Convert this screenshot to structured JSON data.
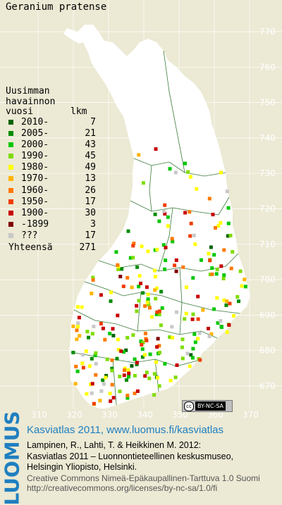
{
  "species": "Geranium pratense",
  "legend": {
    "heading": [
      "Uusimman",
      "havainnon",
      "vuosi"
    ],
    "count_heading": "lkm",
    "items": [
      {
        "label": "2010-",
        "count": "7",
        "color": "#006400"
      },
      {
        "label": "2005-",
        "count": "21",
        "color": "#008c00"
      },
      {
        "label": "2000-",
        "count": "43",
        "color": "#00c800"
      },
      {
        "label": "1990-",
        "count": "45",
        "color": "#7fdc00"
      },
      {
        "label": "1980-",
        "count": "49",
        "color": "#ffff00"
      },
      {
        "label": "1970-",
        "count": "13",
        "color": "#ffb400"
      },
      {
        "label": "1960-",
        "count": "26",
        "color": "#ff7800"
      },
      {
        "label": "1950-",
        "count": "17",
        "color": "#f03c00"
      },
      {
        "label": "1900-",
        "count": "30",
        "color": "#c80000"
      },
      {
        "label": "-1899",
        "count": "3",
        "color": "#800000"
      },
      {
        "label": "???",
        "count": "17",
        "color": "#c8c8c8"
      }
    ],
    "total_label": "Yhteensä",
    "total_count": "271"
  },
  "axis": {
    "north_labels": [
      "770",
      "760",
      "750",
      "740",
      "730",
      "720",
      "710",
      "700",
      "690",
      "680",
      "670"
    ],
    "east_labels": [
      "310",
      "320",
      "330",
      "340",
      "350",
      "360",
      "370"
    ]
  },
  "colors": {
    "background": "#ece9d4",
    "land": "#ffffff",
    "sea": "#ece9d4",
    "grid": "#ffffff",
    "border": "#3a7a3a",
    "brand": "#1f7fc0"
  },
  "cc_badge": {
    "text": "BY-NC-SA",
    "icon": "cc-icon"
  },
  "footer": {
    "logo": "LUOMUS",
    "atlas_line": "Kasviatlas 2011, www.luomus.fi/kasviatlas",
    "citation_1": "Lampinen, R., Lahti, T. & Heikkinen M. 2012:",
    "citation_2": "Kasviatlas 2011 – Luonnontieteellinen keskusmuseo,",
    "citation_3": "Helsingin Yliopisto, Helsinki.",
    "license_1": "Creative Commons Nimeä-Epäkaupallinen-Tarttuva 1.0 Suomi",
    "license_2": "http://creativecommons.org/licenses/by-nc-sa/1.0/fi"
  }
}
